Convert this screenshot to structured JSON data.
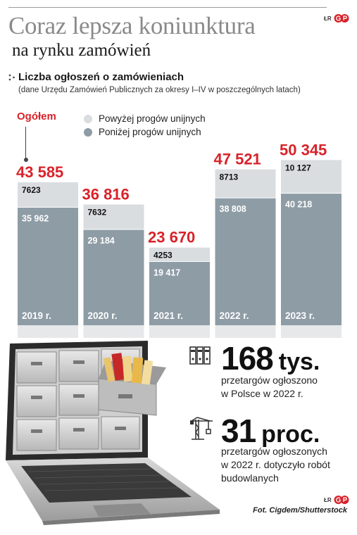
{
  "header": {
    "title": "Coraz lepsza koniunktura",
    "subtitle": "na rynku zamówień",
    "logo_text": "ŁR"
  },
  "chart_data": {
    "type": "bar",
    "stacked": true,
    "title": "Liczba ogłoszeń o zamówieniach",
    "note": "(dane Urzędu Zamówień Publicznych za okresy I–IV w poszczególnych latach)",
    "total_label": "Ogółem",
    "total_color": "#d8232a",
    "categories": [
      "2019 r.",
      "2020 r.",
      "2021 r.",
      "2022 r.",
      "2023 r."
    ],
    "series": [
      {
        "name": "Poniżej progów unijnych",
        "color": "#8e9ca5",
        "values": [
          35962,
          29184,
          19417,
          38808,
          40218
        ],
        "labels": [
          "35 962",
          "29 184",
          "19 417",
          "38 808",
          "40 218"
        ]
      },
      {
        "name": "Powyżej progów unijnych",
        "color": "#dadde0",
        "values": [
          7623,
          7632,
          4253,
          8713,
          10127
        ],
        "labels": [
          "7623",
          "7632",
          "4253",
          "8713",
          "10 127"
        ]
      }
    ],
    "totals": [
      43585,
      36816,
      23670,
      47521,
      50345
    ],
    "total_labels": [
      "43 585",
      "36 816",
      "23 670",
      "47 521",
      "50 345"
    ],
    "legend": [
      "Powyżej progów unijnych",
      "Poniżej progów unijnych"
    ],
    "legend_placement": "top-left",
    "grid": false
  },
  "stats": [
    {
      "icon": "binders-icon",
      "value": "168",
      "unit": "tys.",
      "desc_lines": [
        "przetargów ogłoszono",
        "w Polsce w 2022 r."
      ]
    },
    {
      "icon": "construction-crane-icon",
      "value": "31",
      "unit": "proc.",
      "desc_lines": [
        "przetargów ogłoszonych",
        "w 2022 r. dotyczyło robót",
        "budowlanych"
      ]
    }
  ],
  "footer": {
    "logo_text": "ŁR",
    "credit": "Fot. Cigdem/Shutterstock"
  }
}
